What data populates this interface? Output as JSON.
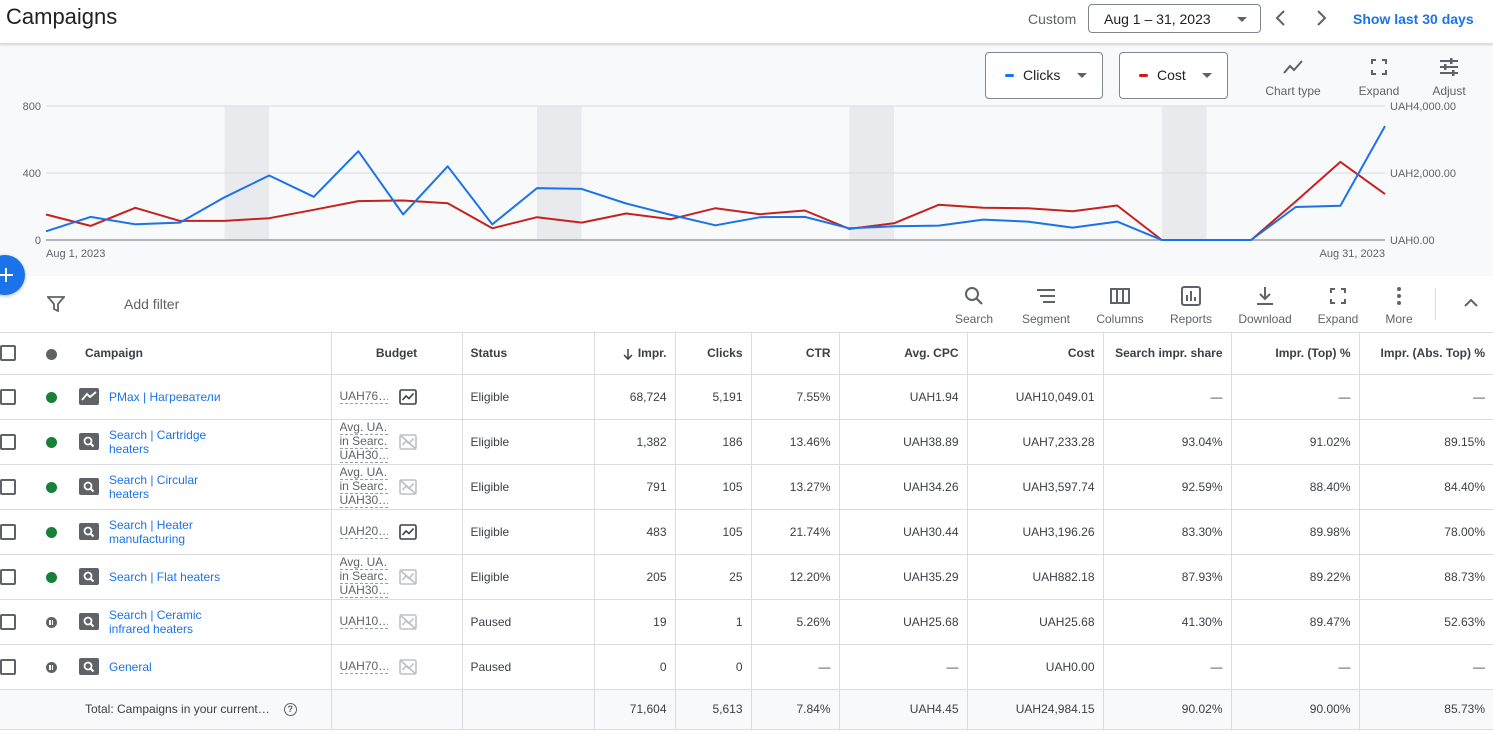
{
  "header": {
    "title": "Campaigns",
    "custom_label": "Custom",
    "date_range": "Aug 1 – 31, 2023",
    "show_last": "Show last 30 days"
  },
  "chart_controls": {
    "metric1": "Clicks",
    "metric1_color": "#1a73e8",
    "metric2": "Cost",
    "metric2_color": "#c5221f",
    "chart_type": "Chart type",
    "expand": "Expand",
    "adjust": "Adjust"
  },
  "chart_data": {
    "type": "line",
    "x_start_label": "Aug 1, 2023",
    "x_end_label": "Aug 31, 2023",
    "x": [
      1,
      2,
      3,
      4,
      5,
      6,
      7,
      8,
      9,
      10,
      11,
      12,
      13,
      14,
      15,
      16,
      17,
      18,
      19,
      20,
      21,
      22,
      23,
      24,
      25,
      26,
      27,
      28,
      29,
      30,
      31
    ],
    "left_axis": {
      "ticks": [
        "800",
        "400",
        "0"
      ],
      "ylim": [
        0,
        800
      ]
    },
    "right_axis": {
      "ticks": [
        "UAH4,000.00",
        "UAH2,000.00",
        "UAH0.00"
      ],
      "ylim": [
        0,
        4000
      ]
    },
    "weekend_bands": [
      [
        5,
        6
      ],
      [
        12,
        13
      ],
      [
        19,
        20
      ],
      [
        26,
        27
      ]
    ],
    "series": [
      {
        "name": "Clicks",
        "axis": "left",
        "color": "#1a73e8",
        "values": [
          52,
          138,
          94,
          104,
          255,
          385,
          258,
          530,
          153,
          440,
          93,
          310,
          305,
          218,
          150,
          88,
          136,
          138,
          70,
          82,
          86,
          122,
          110,
          74,
          110,
          0,
          0,
          0,
          197,
          205,
          680
        ]
      },
      {
        "name": "Cost",
        "axis": "right",
        "color": "#c5221f",
        "values": [
          760,
          420,
          960,
          570,
          570,
          650,
          900,
          1160,
          1180,
          1100,
          350,
          680,
          520,
          790,
          620,
          950,
          770,
          880,
          330,
          500,
          1050,
          960,
          950,
          860,
          1030,
          0,
          0,
          0,
          1150,
          2330,
          1370
        ]
      }
    ]
  },
  "toolbar": {
    "add_filter": "Add filter",
    "search": "Search",
    "segment": "Segment",
    "columns": "Columns",
    "reports": "Reports",
    "download": "Download",
    "expand": "Expand",
    "more": "More"
  },
  "table": {
    "headers": {
      "campaign": "Campaign",
      "budget": "Budget",
      "status": "Status",
      "impr": "Impr.",
      "clicks": "Clicks",
      "ctr": "CTR",
      "avg_cpc": "Avg. CPC",
      "cost": "Cost",
      "search_impr_share": "Search impr. share",
      "impr_top": "Impr. (Top) %",
      "impr_abs_top": "Impr. (Abs. Top) %"
    },
    "rows": [
      {
        "name": "PMax | Нагреватели",
        "type_icon": "pmax-icon",
        "state": "enabled",
        "budget": [
          "UAH76…"
        ],
        "budget_icon": "chart-enabled-icon",
        "status": "Eligible",
        "impr": "68,724",
        "clicks": "5,191",
        "ctr": "7.55%",
        "avg_cpc": "UAH1.94",
        "cost": "UAH10,049.01",
        "sis": "—",
        "top": "—",
        "abs_top": "—"
      },
      {
        "name": "Search | Cartridge heaters",
        "type_icon": "search-campaign-icon",
        "state": "enabled",
        "budget": [
          "Avg. UA…",
          "in Searc…",
          "UAH30…"
        ],
        "budget_icon": "chart-disabled-icon",
        "status": "Eligible",
        "impr": "1,382",
        "clicks": "186",
        "ctr": "13.46%",
        "avg_cpc": "UAH38.89",
        "cost": "UAH7,233.28",
        "sis": "93.04%",
        "top": "91.02%",
        "abs_top": "89.15%"
      },
      {
        "name": "Search | Circular heaters",
        "type_icon": "search-campaign-icon",
        "state": "enabled",
        "budget": [
          "Avg. UA…",
          "in Searc…",
          "UAH30…"
        ],
        "budget_icon": "chart-disabled-icon",
        "status": "Eligible",
        "impr": "791",
        "clicks": "105",
        "ctr": "13.27%",
        "avg_cpc": "UAH34.26",
        "cost": "UAH3,597.74",
        "sis": "92.59%",
        "top": "88.40%",
        "abs_top": "84.40%"
      },
      {
        "name": "Search | Heater manufacturing",
        "type_icon": "search-campaign-icon",
        "state": "enabled",
        "budget": [
          "UAH20…"
        ],
        "budget_icon": "chart-enabled-icon",
        "status": "Eligible",
        "impr": "483",
        "clicks": "105",
        "ctr": "21.74%",
        "avg_cpc": "UAH30.44",
        "cost": "UAH3,196.26",
        "sis": "83.30%",
        "top": "89.98%",
        "abs_top": "78.00%"
      },
      {
        "name": "Search | Flat heaters",
        "type_icon": "search-campaign-icon",
        "state": "enabled",
        "budget": [
          "Avg. UA…",
          "in Searc…",
          "UAH30…"
        ],
        "budget_icon": "chart-disabled-icon",
        "status": "Eligible",
        "impr": "205",
        "clicks": "25",
        "ctr": "12.20%",
        "avg_cpc": "UAH35.29",
        "cost": "UAH882.18",
        "sis": "87.93%",
        "top": "89.22%",
        "abs_top": "88.73%"
      },
      {
        "name": "Search | Ceramic infrared heaters",
        "type_icon": "search-campaign-icon",
        "state": "paused",
        "budget": [
          "UAH10…"
        ],
        "budget_icon": "chart-disabled-icon",
        "status": "Paused",
        "impr": "19",
        "clicks": "1",
        "ctr": "5.26%",
        "avg_cpc": "UAH25.68",
        "cost": "UAH25.68",
        "sis": "41.30%",
        "top": "89.47%",
        "abs_top": "52.63%"
      },
      {
        "name": "General",
        "type_icon": "search-campaign-icon",
        "state": "paused",
        "budget": [
          "UAH70…"
        ],
        "budget_icon": "chart-disabled-icon",
        "status": "Paused",
        "impr": "0",
        "clicks": "0",
        "ctr": "—",
        "avg_cpc": "—",
        "cost": "UAH0.00",
        "sis": "—",
        "top": "—",
        "abs_top": "—"
      }
    ],
    "total": {
      "label": "Total: Campaigns in your current…",
      "impr": "71,604",
      "clicks": "5,613",
      "ctr": "7.84%",
      "avg_cpc": "UAH4.45",
      "cost": "UAH24,984.15",
      "sis": "90.02%",
      "top": "90.00%",
      "abs_top": "85.73%"
    }
  }
}
